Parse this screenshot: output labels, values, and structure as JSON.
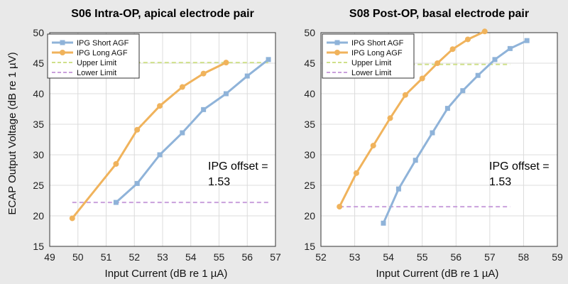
{
  "figure": {
    "ylabel": "ECAP Output Voltage (dB re 1 µV)",
    "xlabel": "Input Current (dB re 1 µA)"
  },
  "colors": {
    "background": "#e9e9e9",
    "plot_bg": "#ffffff",
    "grid": "#dcdcdc",
    "short": "#8fb3d9",
    "long": "#f0b35c",
    "upper": "#cfe08a",
    "lower": "#c9a0dc"
  },
  "chart_data": [
    {
      "type": "line",
      "title": "S06 Intra-OP, apical electrode pair",
      "xlabel": "Input Current (dB re 1 µA)",
      "ylabel": "ECAP Output Voltage (dB re 1 µV)",
      "xlim": [
        49,
        57
      ],
      "ylim": [
        15,
        50
      ],
      "xticks": [
        49,
        50,
        51,
        52,
        53,
        54,
        55,
        56,
        57
      ],
      "yticks": [
        15,
        20,
        25,
        30,
        35,
        40,
        45,
        50
      ],
      "grid": true,
      "legend_position": "top-left",
      "series": [
        {
          "name": "IPG Short AGF",
          "style": "line-square",
          "color": "#8fb3d9",
          "x": [
            51.35,
            52.1,
            52.9,
            53.7,
            54.45,
            55.25,
            56.0,
            56.75
          ],
          "y": [
            22.2,
            25.3,
            30.0,
            33.6,
            37.4,
            40.0,
            42.9,
            45.6
          ]
        },
        {
          "name": "IPG Long AGF",
          "style": "line-circle",
          "color": "#f0b35c",
          "x": [
            49.8,
            51.35,
            52.1,
            52.9,
            53.7,
            54.45,
            55.25
          ],
          "y": [
            19.6,
            28.5,
            34.1,
            38.0,
            41.1,
            43.3,
            45.1
          ]
        },
        {
          "name": "Upper Limit",
          "style": "dashed",
          "color": "#cfe08a",
          "x": [
            49.8,
            56.8
          ],
          "y": [
            45.1,
            45.1
          ]
        },
        {
          "name": "Lower Limit",
          "style": "dashed",
          "color": "#c9a0dc",
          "x": [
            49.8,
            56.8
          ],
          "y": [
            22.2,
            22.2
          ]
        }
      ],
      "annotation": {
        "line1": "IPG offset =",
        "line2": "1.53"
      }
    },
    {
      "type": "line",
      "title": "S08 Post-OP, basal electrode pair",
      "xlabel": "Input Current (dB re 1 µA)",
      "ylabel": "",
      "xlim": [
        52,
        59
      ],
      "ylim": [
        15,
        50
      ],
      "xticks": [
        52,
        53,
        54,
        55,
        56,
        57,
        58,
        59
      ],
      "yticks": [
        15,
        20,
        25,
        30,
        35,
        40,
        45,
        50
      ],
      "grid": true,
      "legend_position": "top-left",
      "series": [
        {
          "name": "IPG Short AGF",
          "style": "line-square",
          "color": "#8fb3d9",
          "x": [
            53.85,
            54.3,
            54.8,
            55.3,
            55.75,
            56.2,
            56.65,
            57.15,
            57.6,
            58.1
          ],
          "y": [
            18.8,
            24.4,
            29.1,
            33.6,
            37.6,
            40.5,
            43.0,
            45.6,
            47.4,
            48.7
          ]
        },
        {
          "name": "IPG Long AGF",
          "style": "line-circle",
          "color": "#f0b35c",
          "x": [
            52.55,
            53.05,
            53.55,
            54.05,
            54.5,
            55.0,
            55.45,
            55.9,
            56.35,
            56.85
          ],
          "y": [
            21.5,
            27.0,
            31.5,
            36.0,
            39.8,
            42.5,
            45.0,
            47.3,
            48.9,
            50.2
          ]
        },
        {
          "name": "Upper Limit",
          "style": "dashed",
          "color": "#cfe08a",
          "x": [
            52.55,
            57.6
          ],
          "y": [
            44.8,
            44.8
          ]
        },
        {
          "name": "Lower Limit",
          "style": "dashed",
          "color": "#c9a0dc",
          "x": [
            52.55,
            57.6
          ],
          "y": [
            21.5,
            21.5
          ]
        }
      ],
      "annotation": {
        "line1": "IPG offset =",
        "line2": "1.53"
      }
    }
  ]
}
